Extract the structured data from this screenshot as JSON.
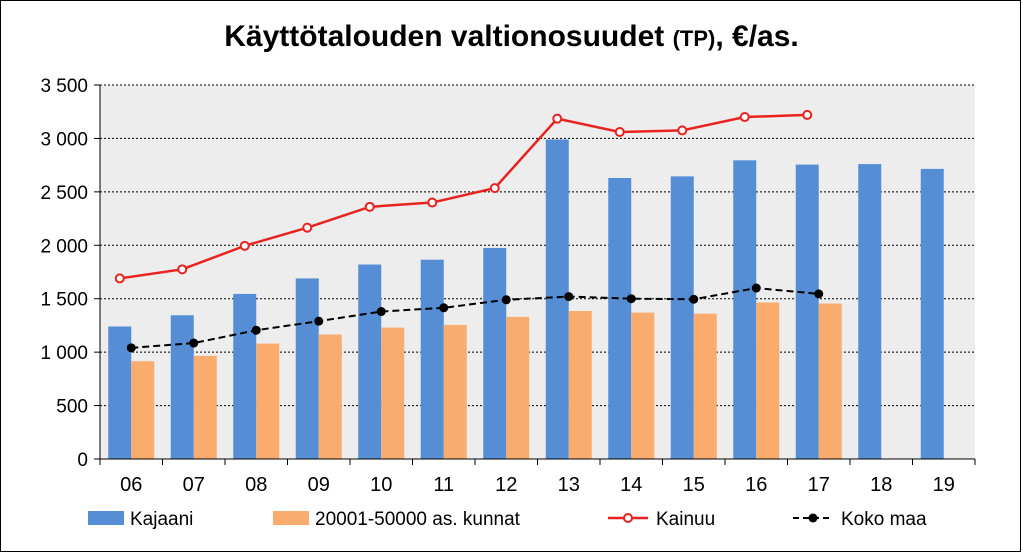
{
  "chart_data": {
    "type": "bar",
    "title": "Käyttötalouden valtionosuudet",
    "title_small": "(TP)",
    "title_suffix": ", €/as.",
    "categories": [
      "06",
      "07",
      "08",
      "09",
      "10",
      "11",
      "12",
      "13",
      "14",
      "15",
      "16",
      "17",
      "18",
      "19"
    ],
    "ylim": [
      0,
      3500
    ],
    "yticks": [
      0,
      500,
      1000,
      1500,
      2000,
      2500,
      3000,
      3500
    ],
    "ytick_labels": [
      "0",
      "500",
      "1 000",
      "1 500",
      "2 000",
      "2 500",
      "3 000",
      "3 500"
    ],
    "grid": true,
    "legend_position": "bottom",
    "series": [
      {
        "name": "Kajaani",
        "type": "bar",
        "color": "#558ED5",
        "values": [
          1240,
          1345,
          1545,
          1690,
          1820,
          1865,
          1975,
          2990,
          2630,
          2645,
          2795,
          2755,
          2760,
          2715
        ]
      },
      {
        "name": "20001-50000 as. kunnat",
        "type": "bar",
        "color": "#FAAC6E",
        "values": [
          915,
          965,
          1080,
          1165,
          1230,
          1255,
          1330,
          1385,
          1370,
          1360,
          1465,
          1455,
          null,
          null
        ]
      },
      {
        "name": "Kainuu",
        "type": "line",
        "color": "#E8231F",
        "marker": "open-circle",
        "values": [
          1690,
          1775,
          1995,
          2165,
          2360,
          2400,
          2535,
          3185,
          3060,
          3075,
          3200,
          3220,
          null,
          null
        ]
      },
      {
        "name": "Koko maa",
        "type": "line",
        "color": "#000000",
        "marker": "filled-circle",
        "dashed": true,
        "values": [
          1040,
          1085,
          1205,
          1290,
          1380,
          1415,
          1490,
          1520,
          1500,
          1495,
          1600,
          1545,
          null,
          null
        ]
      }
    ]
  }
}
